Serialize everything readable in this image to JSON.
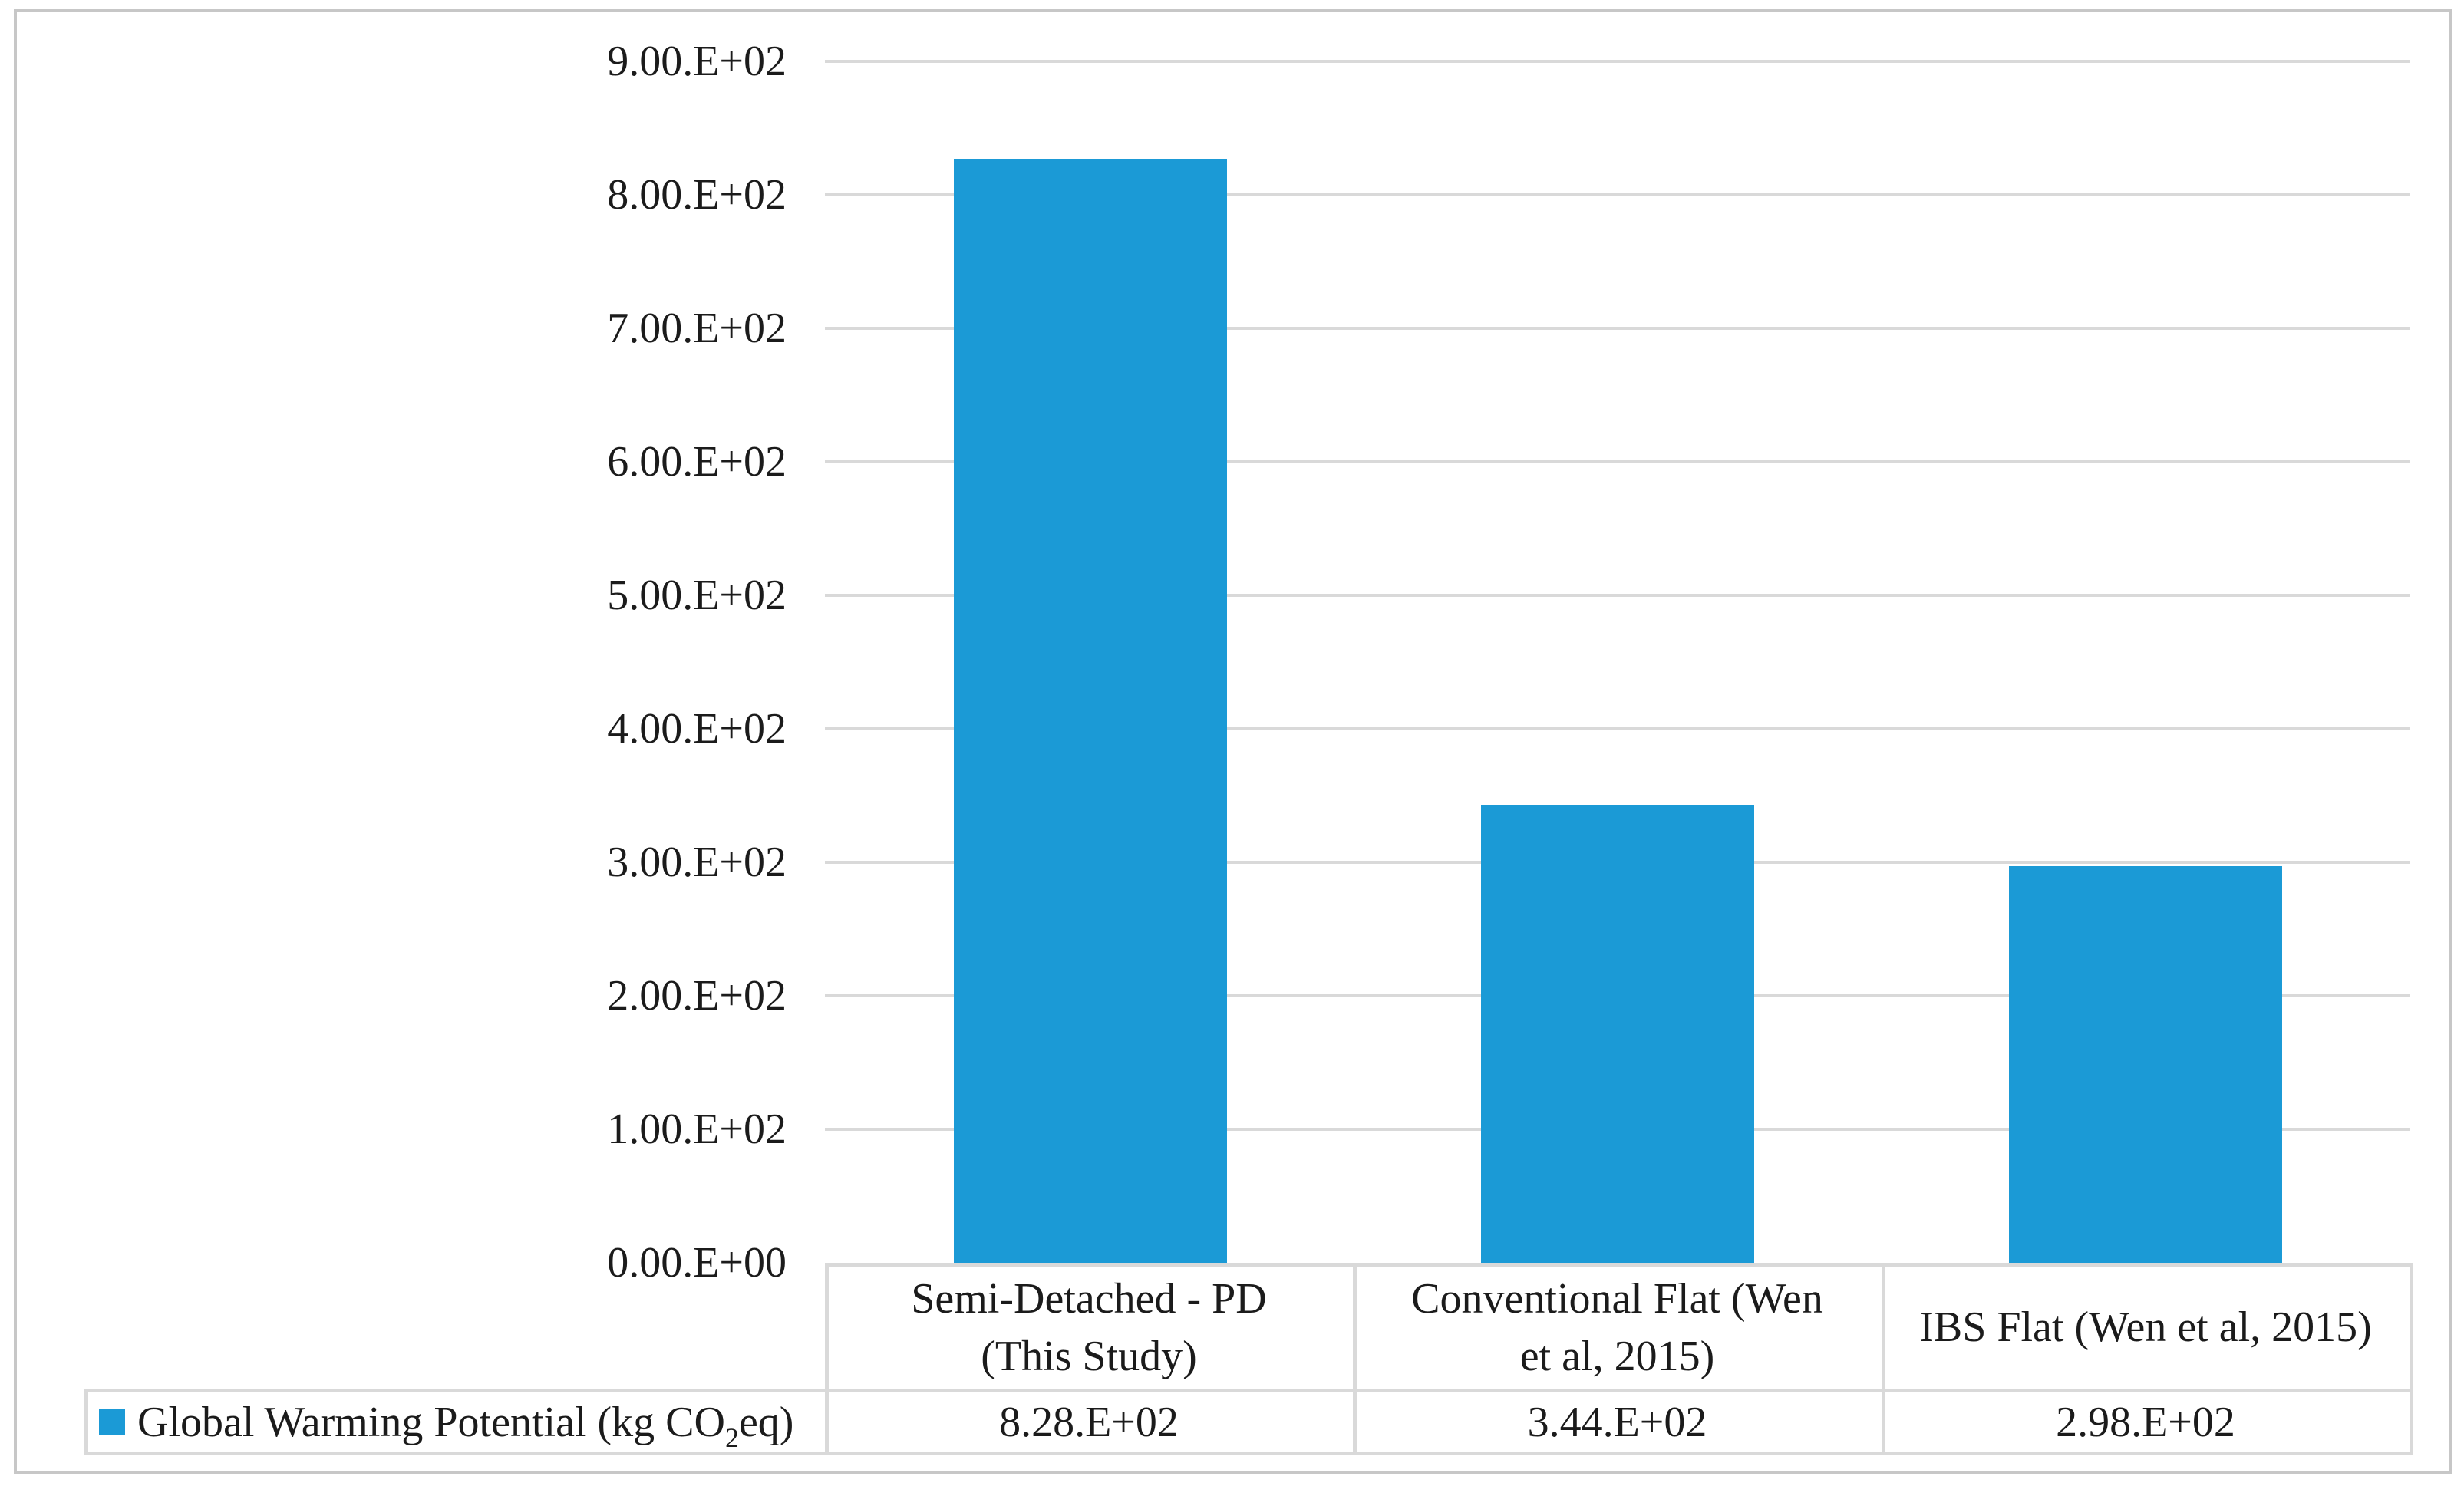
{
  "chart_data": {
    "type": "bar",
    "title": "",
    "categories": [
      "Semi-Detached - PD (This Study)",
      "Conventional Flat (Wen et al, 2015)",
      "IBS Flat (Wen et al, 2015)"
    ],
    "series": [
      {
        "name": "Global Warming Potential (kg CO2eq)",
        "values": [
          828,
          344,
          298
        ]
      }
    ],
    "values": [
      828,
      344,
      298
    ],
    "value_labels": [
      "8.28.E+02",
      "3.44.E+02",
      "2.98.E+02"
    ],
    "ylim": [
      0,
      900
    ],
    "ytick_step": 100,
    "ytick_labels": [
      "0.00.E+00",
      "1.00.E+02",
      "2.00.E+02",
      "3.00.E+02",
      "4.00.E+02",
      "5.00.E+02",
      "6.00.E+02",
      "7.00.E+02",
      "8.00.E+02",
      "9.00.E+02"
    ],
    "xlabel": "",
    "ylabel": "",
    "grid": true,
    "legend_position": "bottom-table",
    "bar_color": "#1b9ad6"
  },
  "table": {
    "legend": {
      "label_full": "Global Warming Potential (kg CO2eq)",
      "prefix": "Global Warming Potential (kg CO",
      "sub": "2",
      "suffix": "eq)"
    },
    "categories": [
      {
        "line1": "Semi-Detached - PD",
        "line2": "(This Study)"
      },
      {
        "line1": "Conventional Flat (Wen",
        "line2": "et al, 2015)"
      },
      {
        "line1": "IBS Flat (Wen et al, 2015)",
        "line2": ""
      }
    ],
    "values": [
      "8.28.E+02",
      "3.44.E+02",
      "2.98.E+02"
    ]
  },
  "colors": {
    "bar": "#1b9ad6",
    "gridline": "#d9d9d9",
    "table_border": "#d9d9d9",
    "figure_border": "#c7c7c7",
    "text": "#1b1b1b"
  }
}
